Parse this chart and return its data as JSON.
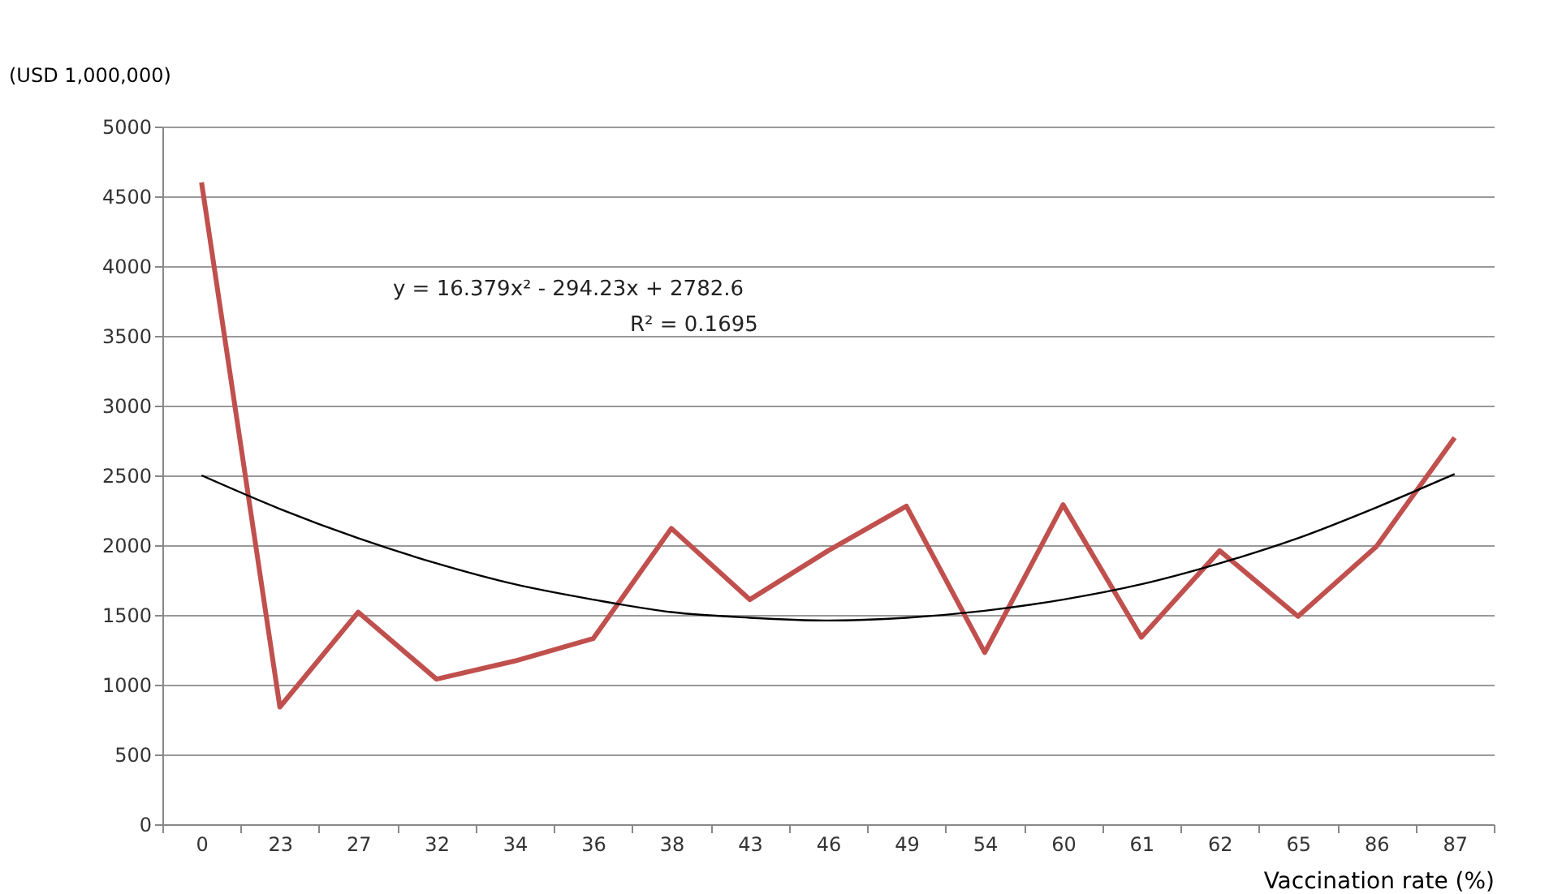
{
  "chart_data": {
    "type": "line",
    "xlabel": "Vaccination rate (%)",
    "ylabel": "(USD 1,000,000)",
    "categories": [
      "0",
      "23",
      "27",
      "32",
      "34",
      "36",
      "38",
      "43",
      "46",
      "49",
      "54",
      "60",
      "61",
      "62",
      "65",
      "86",
      "87"
    ],
    "series": [
      {
        "color": "#c0504d",
        "values": [
          4600,
          840,
          1520,
          1040,
          1170,
          1330,
          2120,
          1610,
          1960,
          2280,
          1230,
          2290,
          1340,
          1960,
          1490,
          1990,
          2770
        ]
      },
      {
        "type": "line",
        "color": "#000000",
        "values": [
          2500,
          2260,
          2050,
          1870,
          1720,
          1610,
          1520,
          1480,
          1460,
          1480,
          1530,
          1610,
          1720,
          1870,
          2050,
          2270,
          2510
        ]
      }
    ],
    "ylim": [
      0,
      5000
    ],
    "yticks": [
      0,
      500,
      1000,
      1500,
      2000,
      2500,
      3000,
      3500,
      4000,
      4500,
      5000
    ],
    "grid": "y",
    "marker": "none",
    "line_style": "solid",
    "annotations": [
      "y = 16.379x² - 294.23x + 2782.6",
      "R² = 0.1695"
    ]
  }
}
